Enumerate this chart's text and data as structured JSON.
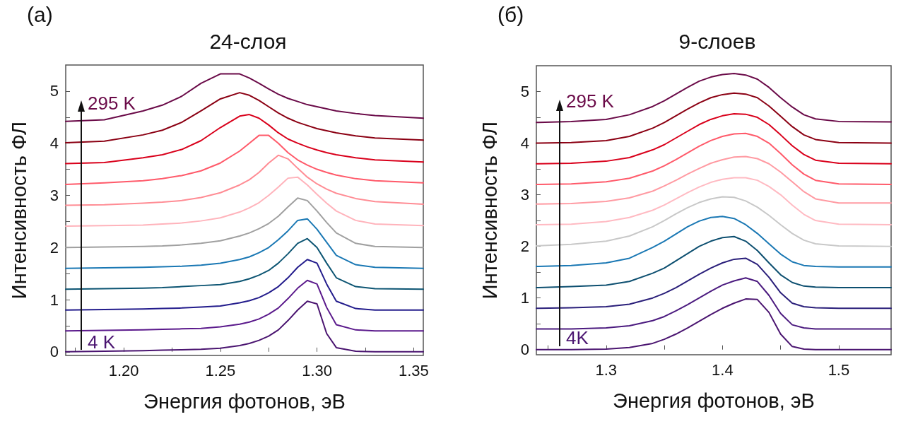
{
  "chart_data": [
    {
      "type": "line",
      "title": "24-слоя",
      "xlabel": "Энергия фотонов, эВ",
      "ylabel": "Интенсивность ФЛ",
      "x": [
        1.17,
        1.19,
        1.21,
        1.22,
        1.23,
        1.24,
        1.25,
        1.26,
        1.265,
        1.27,
        1.275,
        1.28,
        1.285,
        1.29,
        1.295,
        1.3,
        1.305,
        1.31,
        1.32,
        1.33,
        1.355
      ],
      "xlim": [
        1.17,
        1.355
      ],
      "xticks": [
        {
          "value": 1.175,
          "label": null
        },
        {
          "value": 1.2,
          "label": "1.20"
        },
        {
          "value": 1.225,
          "label": null
        },
        {
          "value": 1.25,
          "label": "1.25"
        },
        {
          "value": 1.275,
          "label": null
        },
        {
          "value": 1.3,
          "label": "1.30"
        },
        {
          "value": 1.325,
          "label": null
        },
        {
          "value": 1.35,
          "label": "1.35"
        }
      ],
      "ylim": [
        -0.07,
        5.5
      ],
      "yticks": [
        0,
        {
          "value": 0.5,
          "label": null
        },
        1,
        {
          "value": 1.5,
          "label": null
        },
        2,
        {
          "value": 2.5,
          "label": null
        },
        3,
        {
          "value": 3.5,
          "label": null
        },
        4,
        {
          "value": 4.5,
          "label": null
        },
        5
      ],
      "series": [
        {
          "color": "#4a1470",
          "values": [
            0,
            0.01,
            0.02,
            0.03,
            0.04,
            0.05,
            0.07,
            0.12,
            0.16,
            0.22,
            0.3,
            0.42,
            0.6,
            0.8,
            0.97,
            0.92,
            0.35,
            0.08,
            0.01,
            0,
            0
          ]
        },
        {
          "color": "#5b1a8c",
          "values": [
            0.4,
            0.41,
            0.42,
            0.43,
            0.44,
            0.45,
            0.48,
            0.53,
            0.57,
            0.63,
            0.72,
            0.84,
            1.02,
            1.22,
            1.37,
            1.3,
            0.85,
            0.52,
            0.42,
            0.4,
            0.4
          ]
        },
        {
          "color": "#231c8c",
          "values": [
            0.8,
            0.81,
            0.82,
            0.83,
            0.84,
            0.86,
            0.88,
            0.94,
            0.98,
            1.04,
            1.13,
            1.25,
            1.42,
            1.62,
            1.77,
            1.7,
            1.3,
            0.97,
            0.83,
            0.8,
            0.8
          ]
        },
        {
          "color": "#0d5573",
          "values": [
            1.2,
            1.21,
            1.22,
            1.23,
            1.25,
            1.27,
            1.29,
            1.35,
            1.4,
            1.47,
            1.56,
            1.7,
            1.88,
            2.08,
            2.17,
            2.0,
            1.7,
            1.42,
            1.25,
            1.21,
            1.2
          ]
        },
        {
          "color": "#1a78b4",
          "values": [
            1.6,
            1.61,
            1.62,
            1.63,
            1.64,
            1.66,
            1.7,
            1.77,
            1.82,
            1.9,
            2.0,
            2.15,
            2.32,
            2.52,
            2.55,
            2.35,
            2.1,
            1.85,
            1.67,
            1.62,
            1.6
          ]
        },
        {
          "color": "#a0a0a0",
          "values": [
            2.0,
            2.01,
            2.02,
            2.03,
            2.05,
            2.08,
            2.13,
            2.22,
            2.28,
            2.36,
            2.46,
            2.6,
            2.78,
            2.95,
            2.9,
            2.7,
            2.48,
            2.28,
            2.08,
            2.02,
            2.0
          ]
        },
        {
          "color": "#ffb3bb",
          "values": [
            2.41,
            2.42,
            2.43,
            2.45,
            2.47,
            2.51,
            2.57,
            2.68,
            2.76,
            2.86,
            3.0,
            3.16,
            3.33,
            3.35,
            3.2,
            3.02,
            2.85,
            2.7,
            2.52,
            2.45,
            2.42
          ]
        },
        {
          "color": "#ff8c94",
          "values": [
            2.81,
            2.82,
            2.85,
            2.87,
            2.9,
            2.96,
            3.05,
            3.2,
            3.3,
            3.44,
            3.62,
            3.77,
            3.7,
            3.52,
            3.35,
            3.22,
            3.12,
            3.04,
            2.94,
            2.88,
            2.83
          ]
        },
        {
          "color": "#ff5a6a",
          "values": [
            3.21,
            3.24,
            3.28,
            3.32,
            3.38,
            3.47,
            3.62,
            3.85,
            4.0,
            4.15,
            4.15,
            4.0,
            3.82,
            3.68,
            3.58,
            3.5,
            3.44,
            3.39,
            3.32,
            3.28,
            3.24
          ]
        },
        {
          "color": "#d9001b",
          "values": [
            3.61,
            3.63,
            3.72,
            3.78,
            3.88,
            4.05,
            4.3,
            4.52,
            4.55,
            4.48,
            4.35,
            4.2,
            4.08,
            4.0,
            3.93,
            3.87,
            3.82,
            3.78,
            3.72,
            3.68,
            3.64
          ]
        },
        {
          "color": "#8b0013",
          "values": [
            4.01,
            4.04,
            4.16,
            4.25,
            4.4,
            4.62,
            4.85,
            4.97,
            4.92,
            4.82,
            4.7,
            4.58,
            4.48,
            4.4,
            4.34,
            4.28,
            4.24,
            4.2,
            4.14,
            4.1,
            4.06
          ]
        },
        {
          "color": "#6a0a48",
          "values": [
            4.42,
            4.45,
            4.62,
            4.73,
            4.9,
            5.15,
            5.33,
            5.33,
            5.25,
            5.15,
            5.04,
            4.94,
            4.86,
            4.8,
            4.74,
            4.7,
            4.66,
            4.62,
            4.57,
            4.53,
            4.48
          ]
        }
      ],
      "annotations": [
        "(a)",
        "295 K",
        "4 K"
      ]
    },
    {
      "type": "line",
      "title": "9-слоев",
      "xlabel": "Энергия фотонов, эВ",
      "ylabel": "Интенсивность ФЛ",
      "x": [
        1.24,
        1.27,
        1.3,
        1.32,
        1.34,
        1.35,
        1.36,
        1.37,
        1.38,
        1.39,
        1.4,
        1.41,
        1.42,
        1.43,
        1.44,
        1.45,
        1.46,
        1.47,
        1.48,
        1.5,
        1.545
      ],
      "xlim": [
        1.24,
        1.545
      ],
      "xticks": [
        {
          "value": 1.25,
          "label": null
        },
        1.3,
        {
          "value": 1.35,
          "label": null
        },
        1.4,
        {
          "value": 1.45,
          "label": null
        },
        1.5
      ],
      "ylim": [
        -0.1,
        5.5
      ],
      "yticks": [
        0,
        {
          "value": 0.5,
          "label": null
        },
        1,
        {
          "value": 1.5,
          "label": null
        },
        2,
        {
          "value": 2.5,
          "label": null
        },
        3,
        {
          "value": 3.5,
          "label": null
        },
        4,
        {
          "value": 4.5,
          "label": null
        },
        5
      ],
      "series": [
        {
          "color": "#4a1470",
          "values": [
            0,
            0,
            0.01,
            0.04,
            0.12,
            0.2,
            0.3,
            0.42,
            0.55,
            0.68,
            0.8,
            0.9,
            0.98,
            0.97,
            0.72,
            0.3,
            0.06,
            0.01,
            0,
            0,
            0
          ]
        },
        {
          "color": "#4b1a7f",
          "values": [
            0.4,
            0.4,
            0.42,
            0.46,
            0.56,
            0.64,
            0.75,
            0.87,
            1.0,
            1.13,
            1.25,
            1.33,
            1.39,
            1.32,
            1.05,
            0.7,
            0.48,
            0.42,
            0.4,
            0.4,
            0.4
          ]
        },
        {
          "color": "#2a1f7a",
          "values": [
            0.8,
            0.81,
            0.83,
            0.88,
            1.0,
            1.09,
            1.2,
            1.33,
            1.46,
            1.58,
            1.68,
            1.75,
            1.77,
            1.65,
            1.4,
            1.1,
            0.9,
            0.83,
            0.81,
            0.8,
            0.8
          ]
        },
        {
          "color": "#0d4f70",
          "values": [
            1.2,
            1.22,
            1.25,
            1.32,
            1.48,
            1.58,
            1.72,
            1.86,
            2.0,
            2.1,
            2.17,
            2.19,
            2.1,
            1.92,
            1.68,
            1.45,
            1.3,
            1.23,
            1.21,
            1.2,
            1.2
          ]
        },
        {
          "color": "#1a78b4",
          "values": [
            1.61,
            1.63,
            1.68,
            1.77,
            1.98,
            2.1,
            2.24,
            2.38,
            2.49,
            2.56,
            2.58,
            2.54,
            2.42,
            2.25,
            2.05,
            1.85,
            1.7,
            1.63,
            1.61,
            1.6,
            1.6
          ]
        },
        {
          "color": "#c8c8c8",
          "values": [
            2.01,
            2.04,
            2.1,
            2.2,
            2.38,
            2.5,
            2.63,
            2.75,
            2.85,
            2.92,
            2.96,
            2.95,
            2.88,
            2.76,
            2.6,
            2.42,
            2.25,
            2.12,
            2.05,
            2.01,
            2.0
          ]
        },
        {
          "color": "#ffbac2",
          "values": [
            2.42,
            2.43,
            2.48,
            2.56,
            2.7,
            2.8,
            2.92,
            3.04,
            3.15,
            3.24,
            3.3,
            3.33,
            3.33,
            3.28,
            3.16,
            3.0,
            2.8,
            2.62,
            2.5,
            2.43,
            2.42
          ]
        },
        {
          "color": "#ff9aa2",
          "values": [
            2.82,
            2.83,
            2.87,
            2.94,
            3.07,
            3.17,
            3.28,
            3.4,
            3.51,
            3.61,
            3.68,
            3.73,
            3.74,
            3.7,
            3.6,
            3.44,
            3.25,
            3.06,
            2.92,
            2.84,
            2.84
          ]
        },
        {
          "color": "#ff5a6a",
          "values": [
            3.2,
            3.21,
            3.25,
            3.32,
            3.46,
            3.56,
            3.68,
            3.81,
            3.94,
            4.05,
            4.13,
            4.18,
            4.19,
            4.13,
            4.0,
            3.8,
            3.58,
            3.4,
            3.28,
            3.21,
            3.2
          ]
        },
        {
          "color": "#d9001b",
          "values": [
            3.6,
            3.61,
            3.65,
            3.72,
            3.87,
            3.97,
            4.1,
            4.23,
            4.36,
            4.46,
            4.53,
            4.57,
            4.56,
            4.5,
            4.36,
            4.16,
            3.95,
            3.78,
            3.67,
            3.61,
            3.6
          ]
        },
        {
          "color": "#8b0013",
          "values": [
            4.0,
            4.01,
            4.05,
            4.13,
            4.29,
            4.4,
            4.53,
            4.66,
            4.78,
            4.88,
            4.94,
            4.97,
            4.95,
            4.88,
            4.72,
            4.52,
            4.32,
            4.16,
            4.07,
            4.01,
            4.0
          ]
        },
        {
          "color": "#6a0a48",
          "values": [
            4.4,
            4.42,
            4.46,
            4.55,
            4.71,
            4.82,
            4.95,
            5.08,
            5.2,
            5.28,
            5.33,
            5.35,
            5.32,
            5.24,
            5.08,
            4.88,
            4.7,
            4.55,
            4.47,
            4.42,
            4.41
          ]
        }
      ],
      "annotations": [
        "(б)",
        "295 K",
        "4K"
      ]
    }
  ]
}
